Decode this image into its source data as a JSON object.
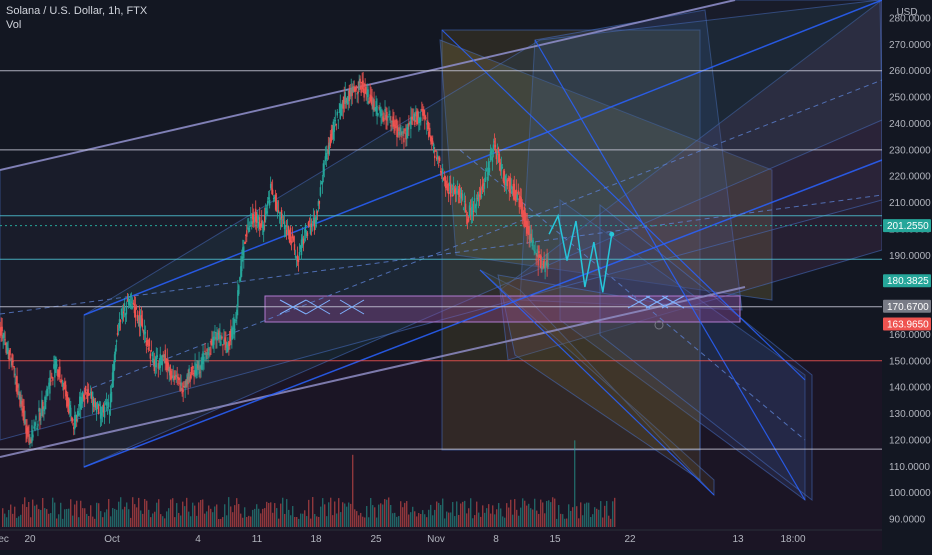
{
  "header": {
    "title": "Solana / U.S. Dollar, 1h, FTX",
    "volume_label": "Vol"
  },
  "chart_data": {
    "type": "candlestick",
    "title": "Solana / U.S. Dollar, 1h, FTX",
    "currency": "USD",
    "ylim": [
      87,
      283
    ],
    "y_ticks": [
      90,
      100,
      110,
      120,
      130,
      140,
      150,
      160,
      170,
      180,
      190,
      200,
      210,
      220,
      230,
      240,
      250,
      260,
      270,
      280
    ],
    "x_ticks": [
      "20",
      "Oct",
      "4",
      "11",
      "18",
      "25",
      "Nov",
      "8",
      "15",
      "22",
      "Dec",
      "13",
      "18:00"
    ],
    "price_labels": [
      {
        "value": "201.2550",
        "color": "#26a69a"
      },
      {
        "value": "180.3825",
        "color": "#26a69a"
      },
      {
        "value": "170.6700",
        "color": "#787b86"
      },
      {
        "value": "163.9650",
        "color": "#ef5350"
      }
    ],
    "horizontal_levels": [
      260,
      230,
      205,
      188.5,
      170.5,
      150,
      116.5
    ],
    "candles_approx": [
      [
        -5,
        168
      ],
      [
        -4,
        172
      ],
      [
        -3,
        160
      ],
      [
        -2,
        150
      ],
      [
        -1,
        135
      ],
      [
        0,
        120
      ],
      [
        1,
        128
      ],
      [
        2,
        138
      ],
      [
        3,
        149
      ],
      [
        4,
        138
      ],
      [
        5,
        125
      ],
      [
        6,
        138
      ],
      [
        7,
        136
      ],
      [
        8,
        130
      ],
      [
        9,
        133
      ],
      [
        10,
        165
      ],
      [
        11,
        172
      ],
      [
        12,
        168
      ],
      [
        13,
        160
      ],
      [
        14,
        148
      ],
      [
        15,
        152
      ],
      [
        16,
        145
      ],
      [
        17,
        140
      ],
      [
        18,
        145
      ],
      [
        19,
        148
      ],
      [
        20,
        154
      ],
      [
        21,
        160
      ],
      [
        22,
        155
      ],
      [
        23,
        165
      ],
      [
        24,
        195
      ],
      [
        25,
        206
      ],
      [
        26,
        200
      ],
      [
        27,
        215
      ],
      [
        28,
        205
      ],
      [
        29,
        199
      ],
      [
        30,
        188
      ],
      [
        31,
        200
      ],
      [
        32,
        202
      ],
      [
        33,
        225
      ],
      [
        34,
        238
      ],
      [
        35,
        248
      ],
      [
        36,
        252
      ],
      [
        37,
        255
      ],
      [
        38,
        250
      ],
      [
        39,
        245
      ],
      [
        40,
        243
      ],
      [
        41,
        238
      ],
      [
        42,
        235
      ],
      [
        43,
        242
      ],
      [
        44,
        244
      ],
      [
        45,
        232
      ],
      [
        46,
        222
      ],
      [
        47,
        215
      ],
      [
        48,
        215
      ],
      [
        49,
        205
      ],
      [
        50,
        210
      ],
      [
        51,
        220
      ],
      [
        52,
        232
      ],
      [
        53,
        220
      ],
      [
        54,
        215
      ],
      [
        55,
        210
      ],
      [
        56,
        196
      ],
      [
        57,
        188
      ],
      [
        58,
        185
      ]
    ],
    "projection_points": [
      [
        58,
        198
      ],
      [
        59,
        205
      ],
      [
        60,
        188
      ],
      [
        61,
        203
      ],
      [
        62,
        178
      ],
      [
        63,
        195
      ],
      [
        64,
        176
      ],
      [
        65,
        198
      ]
    ]
  }
}
